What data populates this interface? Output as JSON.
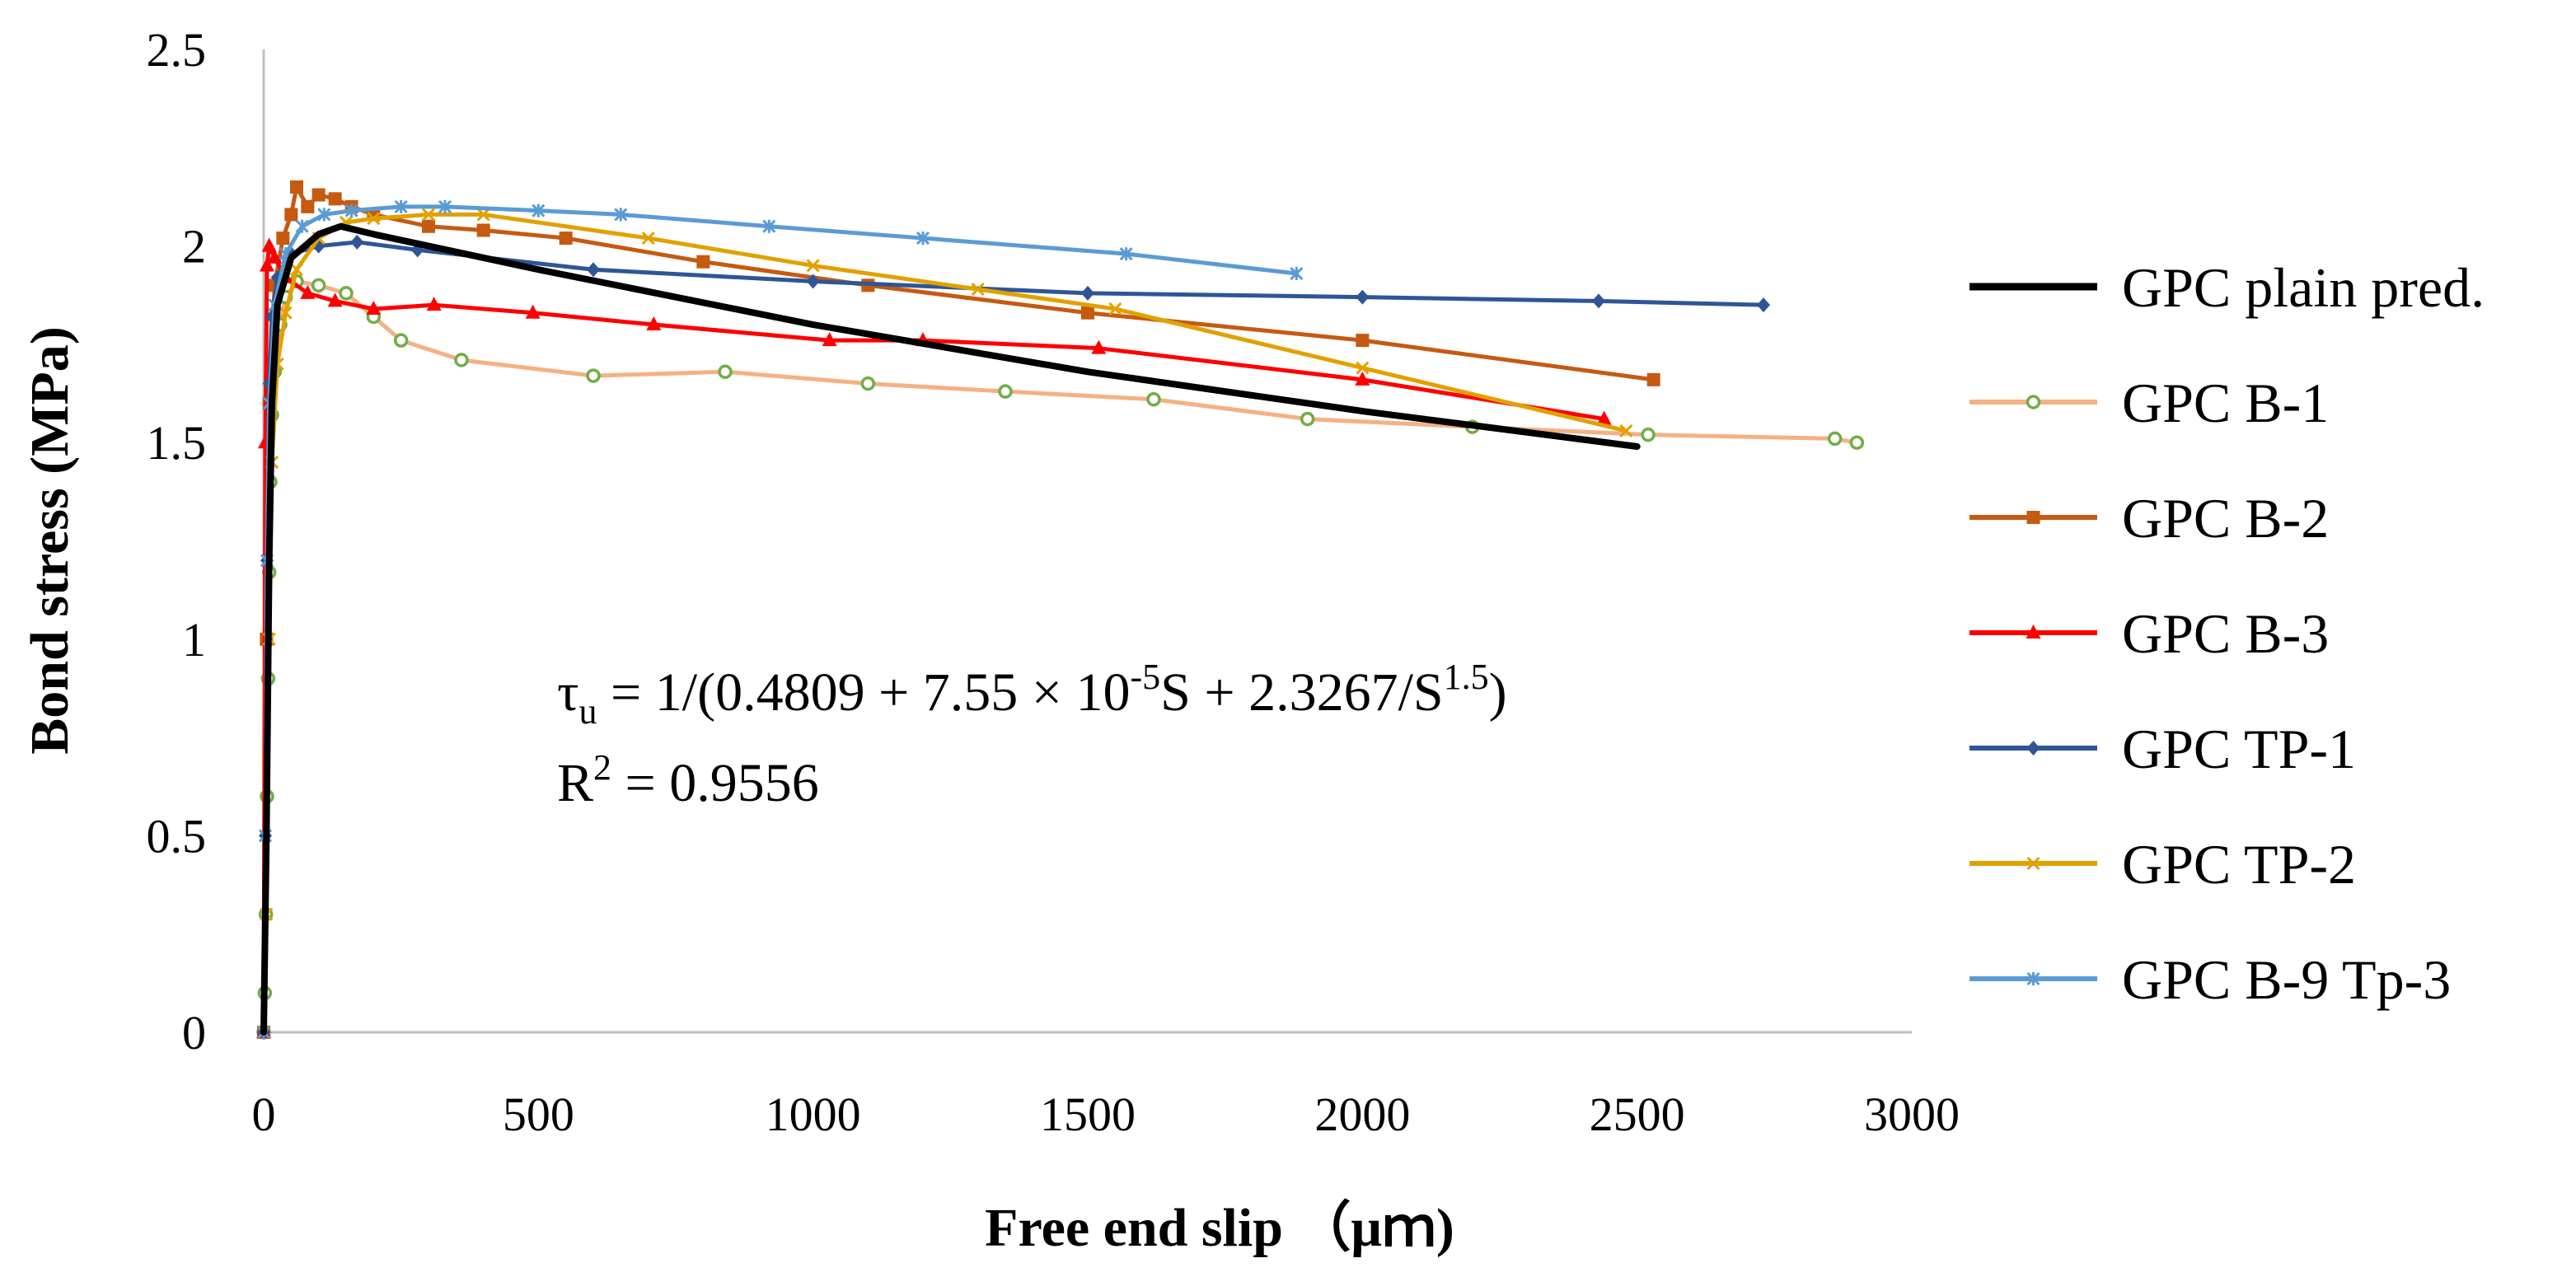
{
  "chart_data": {
    "type": "line",
    "title": "",
    "xlabel": "Free end slip （μｍ)",
    "ylabel": "Bond stress (MPa)",
    "xlim": [
      0,
      3000
    ],
    "ylim": [
      0,
      2.5
    ],
    "x_ticks": [
      "0",
      "500",
      "1000",
      "1500",
      "2000",
      "2500",
      "3000"
    ],
    "y_ticks": [
      "0",
      "0.5",
      "1",
      "1.5",
      "2",
      "2.5"
    ],
    "grid": false,
    "legend_position": "right",
    "equation": {
      "tau": "τ",
      "tau_sub": "u",
      "part1": " = 1/(0.4809 + 7.55 × 10",
      "exp1": "-5",
      "part2": "S + 2.3267/S",
      "exp2": "1.5",
      "part3": ")",
      "r2_prefix": "R",
      "r2_sup": "2",
      "r2_value": " = 0.9556"
    },
    "series": [
      {
        "name": "GPC plain pred.",
        "color": "#000000",
        "marker": "none",
        "points": [
          [
            0,
            0
          ],
          [
            5,
            0.5
          ],
          [
            10,
            1.2
          ],
          [
            15,
            1.6
          ],
          [
            25,
            1.85
          ],
          [
            50,
            1.97
          ],
          [
            100,
            2.03
          ],
          [
            140,
            2.05
          ],
          [
            200,
            2.03
          ],
          [
            500,
            1.94
          ],
          [
            1000,
            1.8
          ],
          [
            1500,
            1.68
          ],
          [
            2000,
            1.58
          ],
          [
            2500,
            1.49
          ]
        ]
      },
      {
        "name": "GPC B-1",
        "color": "#F4B183",
        "marker": "circle",
        "points": [
          [
            0,
            0
          ],
          [
            2,
            0.1
          ],
          [
            4,
            0.3
          ],
          [
            6,
            0.6
          ],
          [
            8,
            0.9
          ],
          [
            10,
            1.17
          ],
          [
            12,
            1.4
          ],
          [
            15,
            1.57
          ],
          [
            20,
            1.68
          ],
          [
            30,
            1.8
          ],
          [
            40,
            1.87
          ],
          [
            60,
            1.91
          ],
          [
            100,
            1.9
          ],
          [
            150,
            1.88
          ],
          [
            200,
            1.82
          ],
          [
            250,
            1.76
          ],
          [
            360,
            1.71
          ],
          [
            600,
            1.67
          ],
          [
            840,
            1.68
          ],
          [
            1100,
            1.65
          ],
          [
            1350,
            1.63
          ],
          [
            1620,
            1.61
          ],
          [
            1900,
            1.56
          ],
          [
            2200,
            1.54
          ],
          [
            2520,
            1.52
          ],
          [
            2860,
            1.51
          ],
          [
            2900,
            1.5
          ]
        ]
      },
      {
        "name": "GPC B-2",
        "color": "#C55A11",
        "marker": "square",
        "points": [
          [
            0,
            0
          ],
          [
            5,
            1.0
          ],
          [
            10,
            1.6
          ],
          [
            20,
            1.9
          ],
          [
            35,
            2.02
          ],
          [
            50,
            2.08
          ],
          [
            60,
            2.15
          ],
          [
            80,
            2.1
          ],
          [
            100,
            2.13
          ],
          [
            130,
            2.12
          ],
          [
            160,
            2.1
          ],
          [
            200,
            2.08
          ],
          [
            300,
            2.05
          ],
          [
            400,
            2.04
          ],
          [
            550,
            2.02
          ],
          [
            800,
            1.96
          ],
          [
            1100,
            1.9
          ],
          [
            1500,
            1.83
          ],
          [
            2000,
            1.76
          ],
          [
            2530,
            1.66
          ]
        ]
      },
      {
        "name": "GPC B-3",
        "color": "#FF0000",
        "marker": "triangle",
        "points": [
          [
            0,
            0
          ],
          [
            3,
            1.5
          ],
          [
            6,
            1.95
          ],
          [
            10,
            2.0
          ],
          [
            20,
            1.97
          ],
          [
            40,
            1.92
          ],
          [
            80,
            1.88
          ],
          [
            130,
            1.86
          ],
          [
            200,
            1.84
          ],
          [
            310,
            1.85
          ],
          [
            490,
            1.83
          ],
          [
            710,
            1.8
          ],
          [
            1030,
            1.76
          ],
          [
            1200,
            1.76
          ],
          [
            1520,
            1.74
          ],
          [
            2000,
            1.66
          ],
          [
            2440,
            1.56
          ]
        ]
      },
      {
        "name": "GPC TP-1",
        "color": "#2F5597",
        "marker": "diamond",
        "points": [
          [
            0,
            0
          ],
          [
            3,
            0.5
          ],
          [
            6,
            1.2
          ],
          [
            10,
            1.65
          ],
          [
            15,
            1.82
          ],
          [
            25,
            1.92
          ],
          [
            50,
            1.98
          ],
          [
            100,
            2.0
          ],
          [
            170,
            2.01
          ],
          [
            280,
            1.99
          ],
          [
            600,
            1.94
          ],
          [
            1000,
            1.91
          ],
          [
            1500,
            1.88
          ],
          [
            2000,
            1.87
          ],
          [
            2430,
            1.86
          ],
          [
            2730,
            1.85
          ]
        ]
      },
      {
        "name": "GPC TP-2",
        "color": "#E1A100",
        "marker": "x",
        "points": [
          [
            0,
            0
          ],
          [
            5,
            0.3
          ],
          [
            10,
            1.0
          ],
          [
            15,
            1.45
          ],
          [
            25,
            1.7
          ],
          [
            40,
            1.83
          ],
          [
            60,
            1.94
          ],
          [
            100,
            2.02
          ],
          [
            150,
            2.06
          ],
          [
            200,
            2.07
          ],
          [
            300,
            2.08
          ],
          [
            400,
            2.08
          ],
          [
            700,
            2.02
          ],
          [
            1000,
            1.95
          ],
          [
            1300,
            1.89
          ],
          [
            1550,
            1.84
          ],
          [
            2000,
            1.69
          ],
          [
            2480,
            1.53
          ]
        ]
      },
      {
        "name": "GPC B-9 Tp-3",
        "color": "#5B9BD5",
        "marker": "star",
        "points": [
          [
            0,
            0
          ],
          [
            3,
            0.5
          ],
          [
            6,
            1.2
          ],
          [
            10,
            1.6
          ],
          [
            20,
            1.85
          ],
          [
            40,
            1.98
          ],
          [
            70,
            2.05
          ],
          [
            110,
            2.08
          ],
          [
            160,
            2.09
          ],
          [
            250,
            2.1
          ],
          [
            330,
            2.1
          ],
          [
            500,
            2.09
          ],
          [
            650,
            2.08
          ],
          [
            920,
            2.05
          ],
          [
            1200,
            2.02
          ],
          [
            1570,
            1.98
          ],
          [
            1880,
            1.93
          ]
        ]
      }
    ]
  }
}
